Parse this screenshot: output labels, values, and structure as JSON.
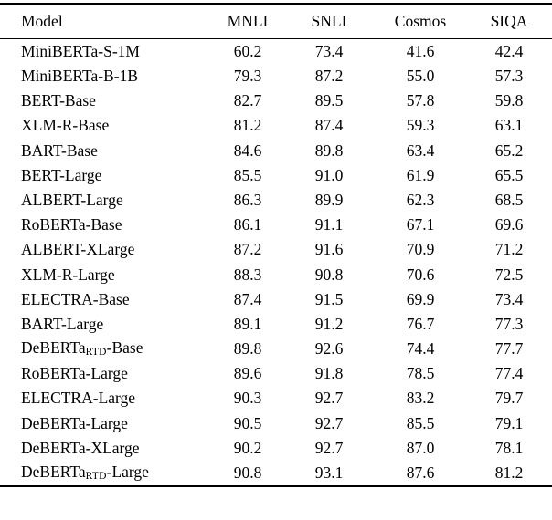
{
  "table": {
    "header": {
      "model": "Model",
      "metrics": [
        "MNLI",
        "SNLI",
        "Cosmos",
        "SIQA"
      ]
    },
    "rows": [
      {
        "model": [
          "MiniBERTa-S-1M",
          "",
          ""
        ],
        "scores": [
          "60.2",
          "73.4",
          "41.6",
          "42.4"
        ]
      },
      {
        "model": [
          "MiniBERTa-B-1B",
          "",
          ""
        ],
        "scores": [
          "79.3",
          "87.2",
          "55.0",
          "57.3"
        ]
      },
      {
        "model": [
          "BERT-Base",
          "",
          ""
        ],
        "scores": [
          "82.7",
          "89.5",
          "57.8",
          "59.8"
        ]
      },
      {
        "model": [
          "XLM-R-Base",
          "",
          ""
        ],
        "scores": [
          "81.2",
          "87.4",
          "59.3",
          "63.1"
        ]
      },
      {
        "model": [
          "BART-Base",
          "",
          ""
        ],
        "scores": [
          "84.6",
          "89.8",
          "63.4",
          "65.2"
        ]
      },
      {
        "model": [
          "BERT-Large",
          "",
          ""
        ],
        "scores": [
          "85.5",
          "91.0",
          "61.9",
          "65.5"
        ]
      },
      {
        "model": [
          "ALBERT-Large",
          "",
          ""
        ],
        "scores": [
          "86.3",
          "89.9",
          "62.3",
          "68.5"
        ]
      },
      {
        "model": [
          "RoBERTa-Base",
          "",
          ""
        ],
        "scores": [
          "86.1",
          "91.1",
          "67.1",
          "69.6"
        ]
      },
      {
        "model": [
          "ALBERT-XLarge",
          "",
          ""
        ],
        "scores": [
          "87.2",
          "91.6",
          "70.9",
          "71.2"
        ]
      },
      {
        "model": [
          "XLM-R-Large",
          "",
          ""
        ],
        "scores": [
          "88.3",
          "90.8",
          "70.6",
          "72.5"
        ]
      },
      {
        "model": [
          "ELECTRA-Base",
          "",
          ""
        ],
        "scores": [
          "87.4",
          "91.5",
          "69.9",
          "73.4"
        ]
      },
      {
        "model": [
          "BART-Large",
          "",
          ""
        ],
        "scores": [
          "89.1",
          "91.2",
          "76.7",
          "77.3"
        ]
      },
      {
        "model": [
          "DeBERTa",
          "RTD",
          "-Base"
        ],
        "scores": [
          "89.8",
          "92.6",
          "74.4",
          "77.7"
        ]
      },
      {
        "model": [
          "RoBERTa-Large",
          "",
          ""
        ],
        "scores": [
          "89.6",
          "91.8",
          "78.5",
          "77.4"
        ]
      },
      {
        "model": [
          "ELECTRA-Large",
          "",
          ""
        ],
        "scores": [
          "90.3",
          "92.7",
          "83.2",
          "79.7"
        ]
      },
      {
        "model": [
          "DeBERTa-Large",
          "",
          ""
        ],
        "scores": [
          "90.5",
          "92.7",
          "85.5",
          "79.1"
        ]
      },
      {
        "model": [
          "DeBERTa-XLarge",
          "",
          ""
        ],
        "scores": [
          "90.2",
          "92.7",
          "87.0",
          "78.1"
        ]
      },
      {
        "model": [
          "DeBERTa",
          "RTD",
          "-Large"
        ],
        "scores": [
          "90.8",
          "93.1",
          "87.6",
          "81.2"
        ]
      }
    ]
  },
  "chart_data": {
    "type": "table",
    "columns": [
      "Model",
      "MNLI",
      "SNLI",
      "Cosmos",
      "SIQA"
    ],
    "rows": [
      [
        "MiniBERTa-S-1M",
        60.2,
        73.4,
        41.6,
        42.4
      ],
      [
        "MiniBERTa-B-1B",
        79.3,
        87.2,
        55.0,
        57.3
      ],
      [
        "BERT-Base",
        82.7,
        89.5,
        57.8,
        59.8
      ],
      [
        "XLM-R-Base",
        81.2,
        87.4,
        59.3,
        63.1
      ],
      [
        "BART-Base",
        84.6,
        89.8,
        63.4,
        65.2
      ],
      [
        "BERT-Large",
        85.5,
        91.0,
        61.9,
        65.5
      ],
      [
        "ALBERT-Large",
        86.3,
        89.9,
        62.3,
        68.5
      ],
      [
        "RoBERTa-Base",
        86.1,
        91.1,
        67.1,
        69.6
      ],
      [
        "ALBERT-XLarge",
        87.2,
        91.6,
        70.9,
        71.2
      ],
      [
        "XLM-R-Large",
        88.3,
        90.8,
        70.6,
        72.5
      ],
      [
        "ELECTRA-Base",
        87.4,
        91.5,
        69.9,
        73.4
      ],
      [
        "BART-Large",
        89.1,
        91.2,
        76.7,
        77.3
      ],
      [
        "DeBERTaRTD-Base",
        89.8,
        92.6,
        74.4,
        77.7
      ],
      [
        "RoBERTa-Large",
        89.6,
        91.8,
        78.5,
        77.4
      ],
      [
        "ELECTRA-Large",
        90.3,
        92.7,
        83.2,
        79.7
      ],
      [
        "DeBERTa-Large",
        90.5,
        92.7,
        85.5,
        79.1
      ],
      [
        "DeBERTa-XLarge",
        90.2,
        92.7,
        87.0,
        78.1
      ],
      [
        "DeBERTaRTD-Large",
        90.8,
        93.1,
        87.6,
        81.2
      ]
    ]
  }
}
